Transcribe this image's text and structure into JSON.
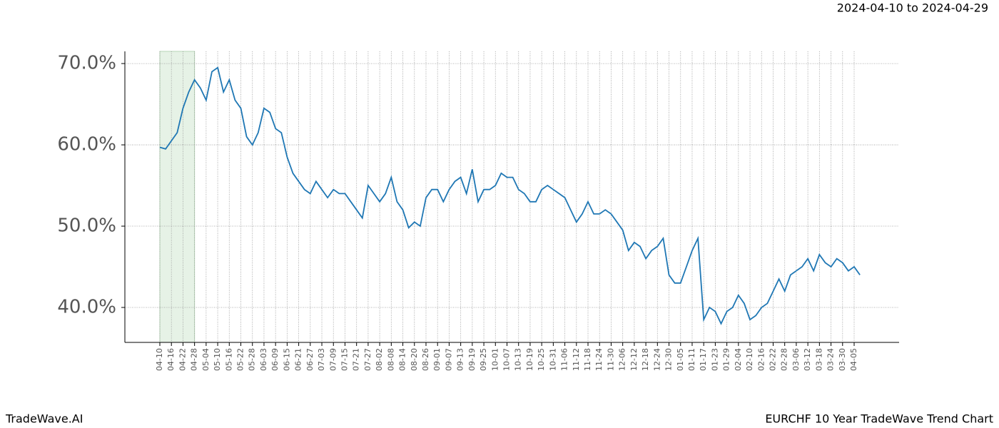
{
  "chart_data": {
    "type": "line",
    "date_range": "2024-04-10 to 2024-04-29",
    "footer_left": "TradeWave.AI",
    "footer_right": "EURCHF 10 Year TradeWave Trend Chart",
    "x": [
      "04-10",
      "04-13",
      "04-16",
      "04-19",
      "04-22",
      "04-25",
      "04-28",
      "05-01",
      "05-04",
      "05-07",
      "05-10",
      "05-13",
      "05-16",
      "05-19",
      "05-22",
      "05-25",
      "05-28",
      "05-31",
      "06-03",
      "06-06",
      "06-09",
      "06-12",
      "06-15",
      "06-18",
      "06-21",
      "06-24",
      "06-27",
      "06-30",
      "07-03",
      "07-06",
      "07-09",
      "07-12",
      "07-15",
      "07-18",
      "07-21",
      "07-24",
      "07-27",
      "07-30",
      "08-02",
      "08-05",
      "08-08",
      "08-11",
      "08-14",
      "08-17",
      "08-20",
      "08-23",
      "08-26",
      "08-29",
      "09-01",
      "09-04",
      "09-07",
      "09-10",
      "09-13",
      "09-16",
      "09-19",
      "09-22",
      "09-25",
      "09-28",
      "10-01",
      "10-04",
      "10-07",
      "10-10",
      "10-13",
      "10-16",
      "10-19",
      "10-22",
      "10-25",
      "10-28",
      "10-31",
      "11-03",
      "11-06",
      "11-09",
      "11-12",
      "11-15",
      "11-18",
      "11-21",
      "11-24",
      "11-27",
      "11-30",
      "12-03",
      "12-06",
      "12-09",
      "12-12",
      "12-15",
      "12-18",
      "12-21",
      "12-24",
      "12-27",
      "12-30",
      "01-02",
      "01-05",
      "01-08",
      "01-11",
      "01-14",
      "01-17",
      "01-20",
      "01-23",
      "01-26",
      "01-29",
      "02-01",
      "02-04",
      "02-07",
      "02-10",
      "02-13",
      "02-16",
      "02-19",
      "02-22",
      "02-25",
      "02-28",
      "03-03",
      "03-06",
      "03-09",
      "03-12",
      "03-15",
      "03-18",
      "03-21",
      "03-24",
      "03-27",
      "03-30",
      "04-02",
      "04-05",
      "04-08"
    ],
    "values": [
      59.7,
      59.5,
      60.5,
      61.5,
      64.5,
      66.5,
      68.0,
      67.0,
      65.5,
      69.0,
      69.5,
      66.5,
      68.0,
      65.5,
      64.5,
      61.0,
      60.0,
      61.5,
      64.5,
      64.0,
      62.0,
      61.5,
      58.5,
      56.5,
      55.5,
      54.5,
      54.0,
      55.5,
      54.5,
      53.5,
      54.5,
      54.0,
      54.0,
      53.0,
      52.0,
      51.0,
      55.0,
      54.0,
      53.0,
      54.0,
      56.0,
      53.0,
      52.0,
      49.8,
      50.5,
      50.0,
      53.5,
      54.5,
      54.5,
      53.0,
      54.5,
      55.5,
      56.0,
      54.0,
      57.0,
      53.0,
      54.5,
      54.5,
      55.0,
      56.5,
      56.0,
      56.0,
      54.5,
      54.0,
      53.0,
      53.0,
      54.5,
      55.0,
      54.5,
      54.0,
      53.5,
      52.0,
      50.5,
      51.5,
      53.0,
      51.5,
      51.5,
      52.0,
      51.5,
      50.5,
      49.5,
      47.0,
      48.0,
      47.5,
      46.0,
      47.0,
      47.5,
      48.5,
      44.0,
      43.0,
      43.0,
      45.0,
      47.0,
      48.5,
      38.5,
      40.0,
      39.5,
      38.0,
      39.5,
      40.0,
      41.5,
      40.5,
      38.5,
      39.0,
      40.0,
      40.5,
      42.0,
      43.5,
      42.0,
      44.0,
      44.5,
      45.0,
      46.0,
      44.5,
      46.5,
      45.5,
      45.0,
      46.0,
      45.5,
      44.5,
      45.0,
      44.0
    ],
    "color": "#1f77b4",
    "highlight": [
      "04-10",
      "04-28"
    ],
    "highlight_color": "#e6f2e6",
    "ylim": [
      35.7,
      71.5
    ],
    "yticks": [
      {
        "value": 40,
        "label": "40.0%"
      },
      {
        "value": 50,
        "label": "50.0%"
      },
      {
        "value": 60,
        "label": "60.0%"
      },
      {
        "value": 70,
        "label": "70.0%"
      }
    ],
    "grid": true
  }
}
